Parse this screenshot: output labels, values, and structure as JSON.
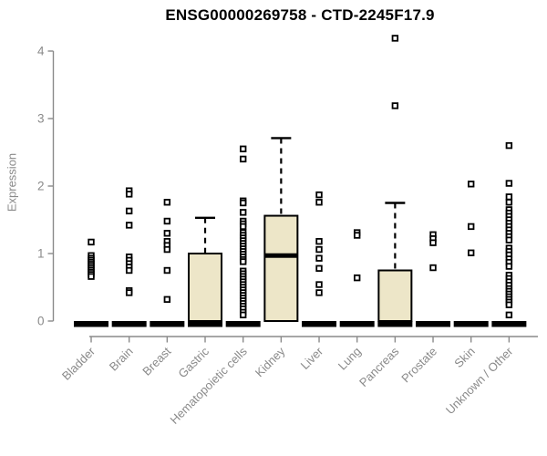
{
  "colors": {
    "box_fill": "#EDE6C8",
    "box_border": "#000000",
    "median": "#000000",
    "outlier_fill": "#ffffff",
    "outlier_border": "#000000",
    "axis": "#8a8a8a",
    "tick_label": "#8a8a8a",
    "title": "#000000",
    "background": "#ffffff"
  },
  "chart_data": {
    "type": "boxplot",
    "title": "ENSG00000269758 - CTD-2245F17.9",
    "ylabel": "Expression",
    "xlabel": "",
    "ylim": [
      0,
      4
    ],
    "yticks": [
      0,
      1,
      2,
      3,
      4
    ],
    "grid": false,
    "legend": false,
    "categories": [
      "Bladder",
      "Brain",
      "Breast",
      "Gastric",
      "Hematopoietic cells",
      "Kidney",
      "Liver",
      "Lung",
      "Pancreas",
      "Prostate",
      "Skin",
      "Unknown / Other"
    ],
    "boxes": [
      {
        "category": "Bladder",
        "q1": 0,
        "median": 0,
        "q3": 0,
        "whisker_low": 0,
        "whisker_high": 0,
        "outliers": [
          1.17,
          0.97,
          0.93,
          0.9,
          0.87,
          0.84,
          0.81,
          0.78,
          0.75,
          0.72,
          0.69,
          0.66
        ]
      },
      {
        "category": "Brain",
        "q1": 0,
        "median": 0,
        "q3": 0,
        "whisker_low": 0,
        "whisker_high": 0,
        "outliers": [
          1.93,
          1.88,
          1.63,
          1.42,
          0.95,
          0.9,
          0.85,
          0.8,
          0.75,
          0.45,
          0.42
        ]
      },
      {
        "category": "Breast",
        "q1": 0,
        "median": 0,
        "q3": 0,
        "whisker_low": 0,
        "whisker_high": 0,
        "outliers": [
          1.76,
          1.48,
          1.3,
          1.18,
          1.12,
          1.06,
          0.75,
          0.32
        ]
      },
      {
        "category": "Gastric",
        "q1": 0,
        "median": 0,
        "q3": 1.0,
        "whisker_low": 0,
        "whisker_high": 1.53,
        "outliers": []
      },
      {
        "category": "Hematopoietic cells",
        "q1": 0,
        "median": 0,
        "q3": 0,
        "whisker_low": 0,
        "whisker_high": 0,
        "outliers": [
          2.55,
          2.4,
          1.78,
          1.75,
          1.61,
          1.48,
          1.44,
          1.4,
          1.31,
          1.27,
          1.23,
          1.19,
          1.15,
          1.11,
          1.07,
          1.03,
          0.99,
          0.95,
          0.91,
          0.88,
          0.74,
          0.7,
          0.66,
          0.62,
          0.58,
          0.54,
          0.5,
          0.46,
          0.42,
          0.38,
          0.34,
          0.3,
          0.26,
          0.22,
          0.18,
          0.13,
          0.09
        ]
      },
      {
        "category": "Kidney",
        "q1": 0,
        "median": 0.97,
        "q3": 1.56,
        "whisker_low": 0,
        "whisker_high": 2.71,
        "outliers": []
      },
      {
        "category": "Liver",
        "q1": 0,
        "median": 0,
        "q3": 0,
        "whisker_low": 0,
        "whisker_high": 0,
        "outliers": [
          1.87,
          1.76,
          1.18,
          1.06,
          0.93,
          0.78,
          0.54,
          0.42
        ]
      },
      {
        "category": "Lung",
        "q1": 0,
        "median": 0,
        "q3": 0,
        "whisker_low": 0,
        "whisker_high": 0,
        "outliers": [
          1.31,
          1.27,
          0.64
        ]
      },
      {
        "category": "Pancreas",
        "q1": 0,
        "median": 0,
        "q3": 0.75,
        "whisker_low": 0,
        "whisker_high": 1.75,
        "outliers": [
          4.19,
          3.19
        ]
      },
      {
        "category": "Prostate",
        "q1": 0,
        "median": 0,
        "q3": 0,
        "whisker_low": 0,
        "whisker_high": 0,
        "outliers": [
          1.28,
          1.22,
          1.16,
          0.79
        ]
      },
      {
        "category": "Skin",
        "q1": 0,
        "median": 0,
        "q3": 0,
        "whisker_low": 0,
        "whisker_high": 0,
        "outliers": [
          2.03,
          1.4,
          1.01
        ]
      },
      {
        "category": "Unknown / Other",
        "q1": 0,
        "median": 0,
        "q3": 0,
        "whisker_low": 0,
        "whisker_high": 0,
        "outliers": [
          2.6,
          2.04,
          1.84,
          1.76,
          1.65,
          1.6,
          1.55,
          1.5,
          1.45,
          1.4,
          1.35,
          1.3,
          1.25,
          1.2,
          1.08,
          1.03,
          0.98,
          0.92,
          0.87,
          0.81,
          0.68,
          0.63,
          0.58,
          0.53,
          0.48,
          0.44,
          0.4,
          0.36,
          0.32,
          0.28,
          0.24,
          0.09
        ]
      }
    ]
  }
}
